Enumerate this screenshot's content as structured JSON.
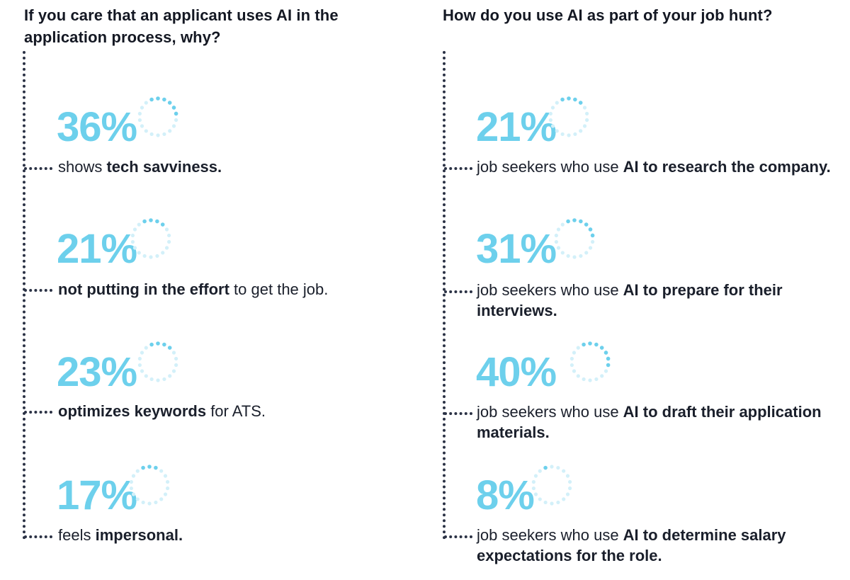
{
  "left": {
    "title": "If you care that an applicant uses AI in the application process, why?",
    "items": [
      {
        "percent": "36%",
        "value": 36,
        "pre": "shows ",
        "bold": "tech savviness.",
        "post": ""
      },
      {
        "percent": "21%",
        "value": 21,
        "pre": "",
        "bold": "not putting in the effort",
        "post": " to get the job."
      },
      {
        "percent": "23%",
        "value": 23,
        "pre": "",
        "bold": "optimizes keywords",
        "post": " for ATS."
      },
      {
        "percent": "17%",
        "value": 17,
        "pre": "feels ",
        "bold": "impersonal.",
        "post": ""
      }
    ]
  },
  "right": {
    "title": "How do you use AI as part of your job hunt?",
    "items": [
      {
        "percent": "21%",
        "value": 21,
        "pre": "job seekers who use ",
        "bold": "AI to research the company.",
        "post": ""
      },
      {
        "percent": "31%",
        "value": 31,
        "pre": "job seekers who use ",
        "bold": "AI to prepare for their interviews.",
        "post": ""
      },
      {
        "percent": "40%",
        "value": 40,
        "pre": "job seekers who use ",
        "bold": "AI to draft their application materials.",
        "post": ""
      },
      {
        "percent": "8%",
        "value": 8,
        "pre": "job seekers who use ",
        "bold": "AI to determine salary expectations for the role.",
        "post": ""
      }
    ]
  },
  "colors": {
    "accent": "#6dd0ec",
    "accent_light": "#d3f0f9",
    "text": "#1a1f2b",
    "dots": "#2b3245"
  },
  "chart_data": [
    {
      "type": "bar",
      "title": "If you care that an applicant uses AI in the application process, why?",
      "categories": [
        "shows tech savviness.",
        "not putting in the effort to get the job.",
        "optimizes keywords for ATS.",
        "feels impersonal."
      ],
      "values": [
        36,
        21,
        23,
        17
      ],
      "ylabel": "%"
    },
    {
      "type": "bar",
      "title": "How do you use AI as part of your job hunt?",
      "categories": [
        "AI to research the company.",
        "AI to prepare for their interviews.",
        "AI to draft their application materials.",
        "AI to determine salary expectations for the role."
      ],
      "values": [
        21,
        31,
        40,
        8
      ],
      "ylabel": "%"
    }
  ]
}
